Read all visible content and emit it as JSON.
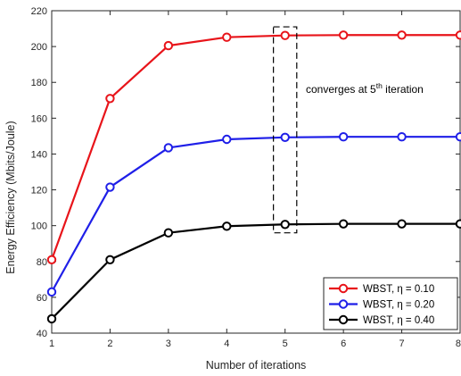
{
  "chart_data": {
    "type": "line",
    "title": "",
    "xlabel": "Number of iterations",
    "ylabel": "Energy Efficiency (Mbits/Joule)",
    "xlim": [
      1,
      8
    ],
    "ylim": [
      40,
      220
    ],
    "xticks": [
      1,
      2,
      3,
      4,
      5,
      6,
      7,
      8
    ],
    "yticks": [
      40,
      60,
      80,
      100,
      120,
      140,
      160,
      180,
      200,
      220
    ],
    "grid": false,
    "legend_position": "bottom-right",
    "x": [
      1,
      2,
      3,
      4,
      5,
      6,
      7,
      8
    ],
    "series": [
      {
        "name": "WBST, η = 0.10",
        "color": "#e8141a",
        "values": [
          81,
          171,
          200.5,
          205.2,
          206.2,
          206.4,
          206.4,
          206.4
        ]
      },
      {
        "name": "WBST, η = 0.20",
        "color": "#1f1fe8",
        "values": [
          63,
          121.5,
          143.5,
          148.2,
          149.3,
          149.6,
          149.6,
          149.6
        ]
      },
      {
        "name": "WBST, η = 0.40",
        "color": "#000000",
        "values": [
          48,
          81,
          96,
          99.7,
          100.7,
          101,
          101,
          101
        ]
      }
    ],
    "annotation": {
      "text": "converges at 5",
      "superscript": "th",
      "text_after": " iteration",
      "box_x": [
        4.8,
        5.2
      ],
      "box_y": [
        96,
        211
      ]
    }
  }
}
